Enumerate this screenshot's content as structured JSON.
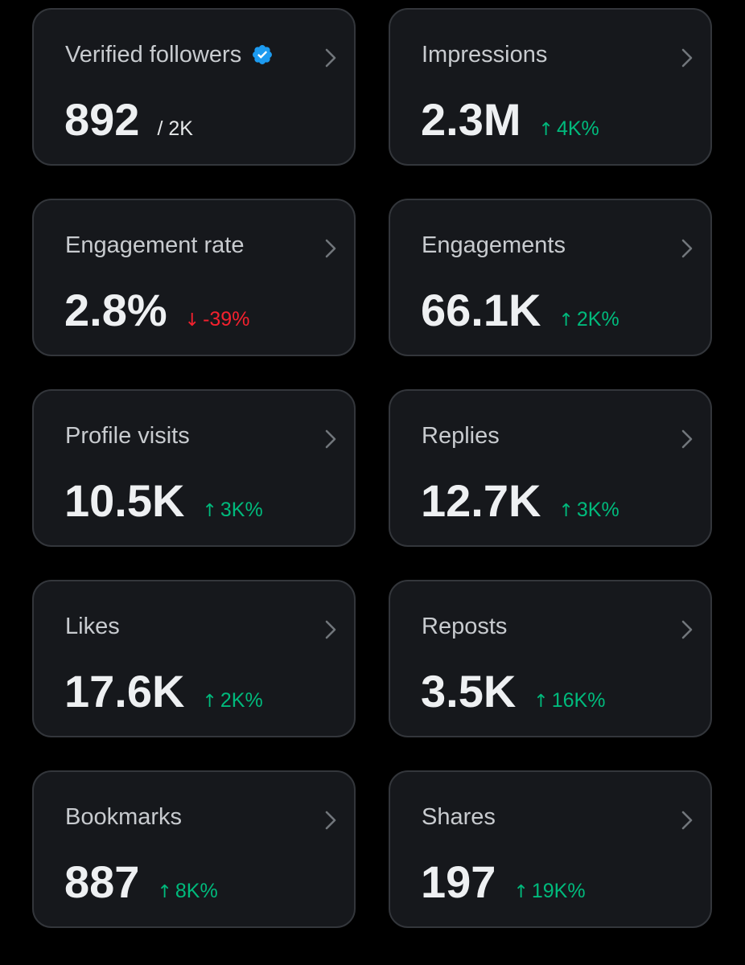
{
  "colors": {
    "background": "#000000",
    "card": "#16181c",
    "card_border": "#33363b",
    "positive": "#00ba7c",
    "negative": "#f4212e",
    "verified": "#1d9bf0"
  },
  "cards": [
    {
      "label": "Verified followers",
      "value": "892",
      "sub": "/ 2K",
      "verified_badge": true,
      "icon": "verified-badge-icon"
    },
    {
      "label": "Impressions",
      "value": "2.3M",
      "change": "4K%",
      "direction": "up"
    },
    {
      "label": "Engagement rate",
      "value": "2.8%",
      "change": "-39%",
      "direction": "down"
    },
    {
      "label": "Engagements",
      "value": "66.1K",
      "change": "2K%",
      "direction": "up"
    },
    {
      "label": "Profile visits",
      "value": "10.5K",
      "change": "3K%",
      "direction": "up"
    },
    {
      "label": "Replies",
      "value": "12.7K",
      "change": "3K%",
      "direction": "up"
    },
    {
      "label": "Likes",
      "value": "17.6K",
      "change": "2K%",
      "direction": "up"
    },
    {
      "label": "Reposts",
      "value": "3.5K",
      "change": "16K%",
      "direction": "up"
    },
    {
      "label": "Bookmarks",
      "value": "887",
      "change": "8K%",
      "direction": "up"
    },
    {
      "label": "Shares",
      "value": "197",
      "change": "19K%",
      "direction": "up"
    }
  ]
}
